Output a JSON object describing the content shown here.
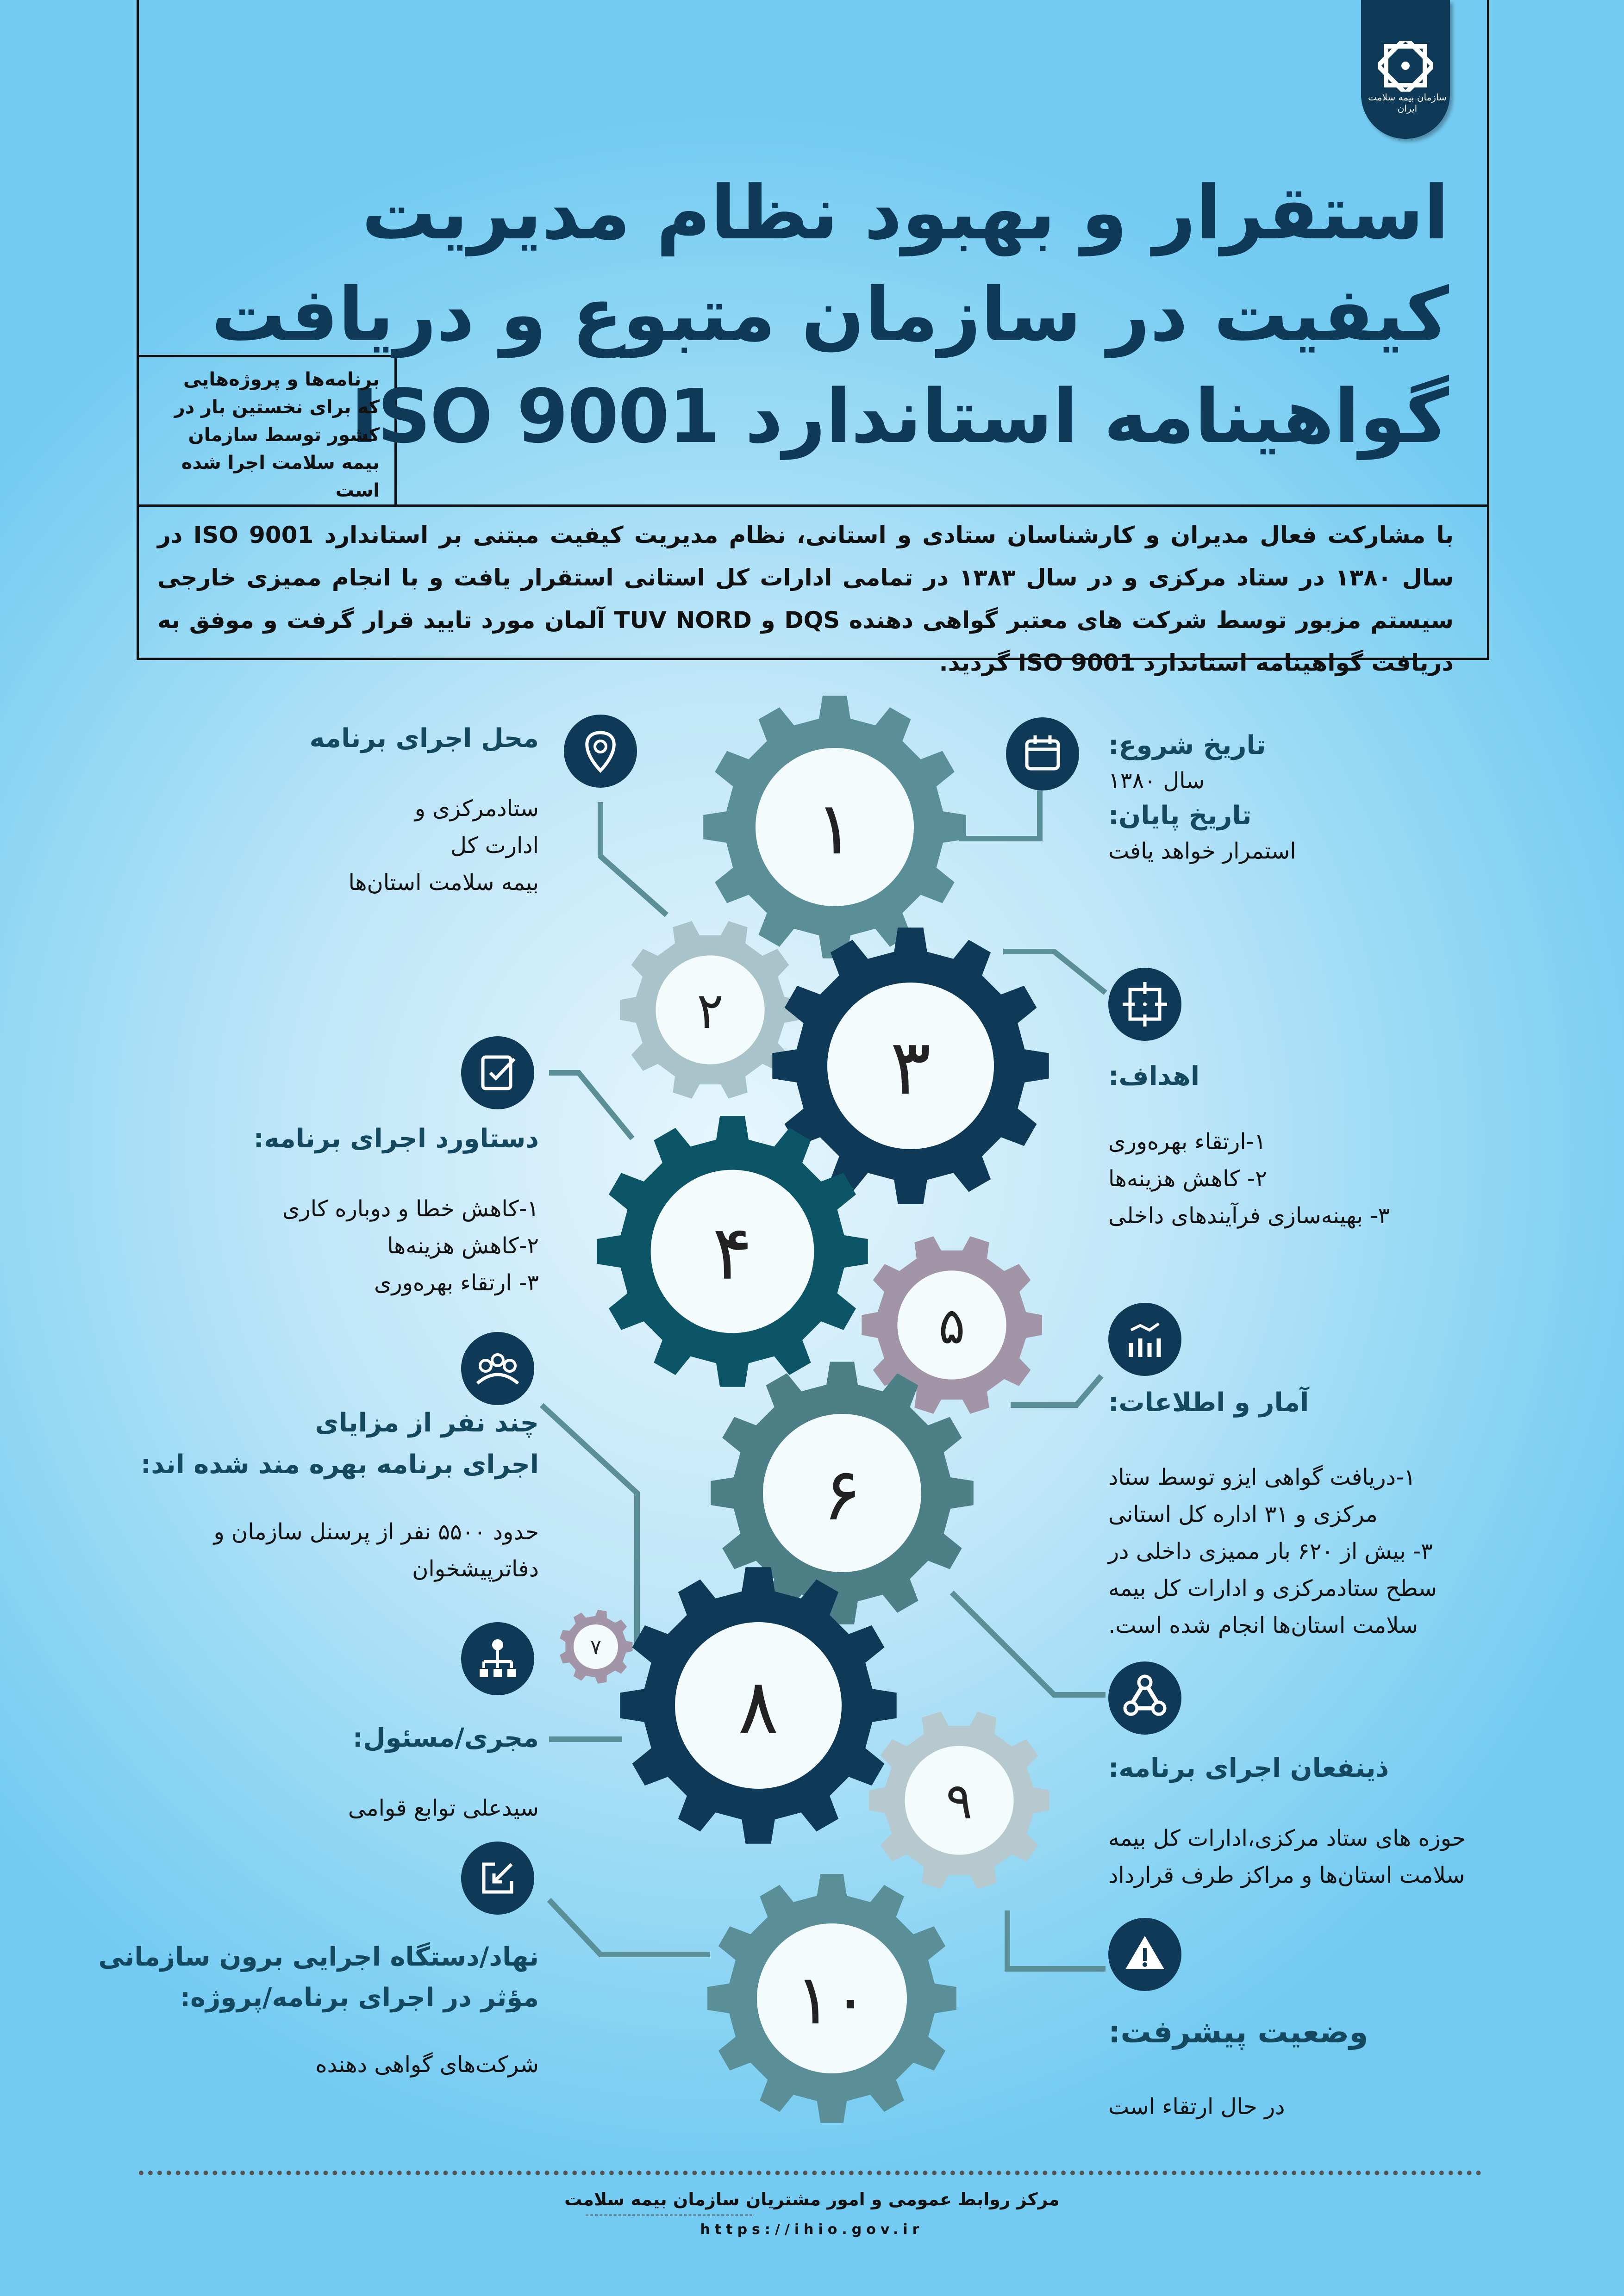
{
  "logo": {
    "org_name": "سازمان بیمه سلامت ایران"
  },
  "title": {
    "line1": "استقرار و بهبود نظام مدیریت",
    "line2": "کیفیت در سازمان متبوع و دریافت",
    "line3": "گواهینامه استاندارد ISO 9001"
  },
  "side_note": "برنامه‌ها و پروژه‌هایی که برای نخستین بار در کشور توسط سازمان بیمه سلامت اجرا شده است",
  "intro": "با مشارکت فعال مدیران و کارشناسان ستادی و استانی، نظام مدیریت کیفیت مبتنی بر استاندارد ISO 9001 در سال ۱۳۸۰ در ستاد مرکزی و در سال ۱۳۸۳ در تمامی ادارات کل استانی استقرار یافت و با انجام ممیزی خارجی سیستم مزبور توسط شرکت های معتبر گواهی دهنده DQS و TUV NORD آلمان مورد تایید قرار گرفت و موفق به دریافت گواهینامه استاندارد ISO 9001 گردید.",
  "gears": [
    {
      "label": "۱",
      "color": "#5a8f98"
    },
    {
      "label": "۲",
      "color": "#a9c3cb"
    },
    {
      "label": "۳",
      "color": "#0e3a57"
    },
    {
      "label": "۴",
      "color": "#0b5566"
    },
    {
      "label": "۵",
      "color": "#a395a8"
    },
    {
      "label": "۶",
      "color": "#4d7f87"
    },
    {
      "label": "۷",
      "color": "#a395a8"
    },
    {
      "label": "۸",
      "color": "#0e3a57"
    },
    {
      "label": "۹",
      "color": "#b5c9cf"
    },
    {
      "label": "۱۰",
      "color": "#5a8f98"
    }
  ],
  "right": {
    "dates": {
      "start_label": "تاریخ شروع:",
      "start_value": "سال ۱۳۸۰",
      "end_label": "تاریخ پایان:",
      "end_value": "استمرار خواهد یافت",
      "icon": "calendar-icon"
    },
    "goals": {
      "label": "اهداف:",
      "items": [
        "۱-ارتقاء بهره‌وری",
        "۲- کاهش هزینه‌ها",
        "۳- بهینه‌سازی فرآیندهای داخلی"
      ],
      "icon": "target-icon"
    },
    "stats": {
      "label": "آمار و اطلاعات:",
      "items": [
        "۱-دریافت گواهی ایزو توسط ستاد مرکزی و ۳۱ اداره کل استانی",
        "۳- بیش از ۶۲۰ بار ممیزی داخلی در سطح ستادمرکزی و ادارات کل بیمه سلامت استان‌ها انجام شده است."
      ],
      "icon": "chart-icon"
    },
    "stakeholders": {
      "label": "ذینفعان اجرای برنامه:",
      "body": "حوزه های ستاد مرکزی،ادارات کل بیمه سلامت استان‌ها و مراکز طرف قرارداد",
      "icon": "network-icon"
    },
    "progress": {
      "label": "وضعیت پیشرفت:",
      "body": "در حال ارتقاء است",
      "icon": "warning-icon"
    }
  },
  "left": {
    "location": {
      "label": "محل اجرای برنامه",
      "lines": [
        "ستادمرکزی و",
        "ادارت کل",
        "بیمه سلامت استان‌ها"
      ],
      "icon": "location-pin-icon"
    },
    "achievements": {
      "label": "دستاورد اجرای برنامه:",
      "items": [
        "۱-کاهش خطا و دوباره کاری",
        "۲-کاهش هزینه‌ها",
        "۳- ارتقاء بهره‌وری"
      ],
      "icon": "checklist-icon"
    },
    "beneficiaries": {
      "label_line1": "چند نفر از مزایای",
      "label_line2": "اجرای برنامه بهره مند شده اند:",
      "body": "حدود ۵۵۰۰ نفر از پرسنل سازمان و دفاترپیشخوان",
      "icon": "people-icon"
    },
    "executor": {
      "label": "مجری/مسئول:",
      "body": "سیدعلی توابع قوامی",
      "icon": "org-chart-icon"
    },
    "external": {
      "label_line1": "نهاد/دستگاه اجرایی برون سازمانی",
      "label_line2": "مؤثر در اجرای برنامه/پروژه:",
      "body": "شرکت‌های گواهی دهنده",
      "icon": "external-link-icon"
    }
  },
  "footer": {
    "org": "مرکز روابط عمومی و امور مشتریان سازمان بیمه سلامت",
    "url": "https://ihio.gov.ir"
  },
  "colors": {
    "navy": "#0e3a57",
    "teal_line": "#5a8f98",
    "heading": "#14485e"
  }
}
